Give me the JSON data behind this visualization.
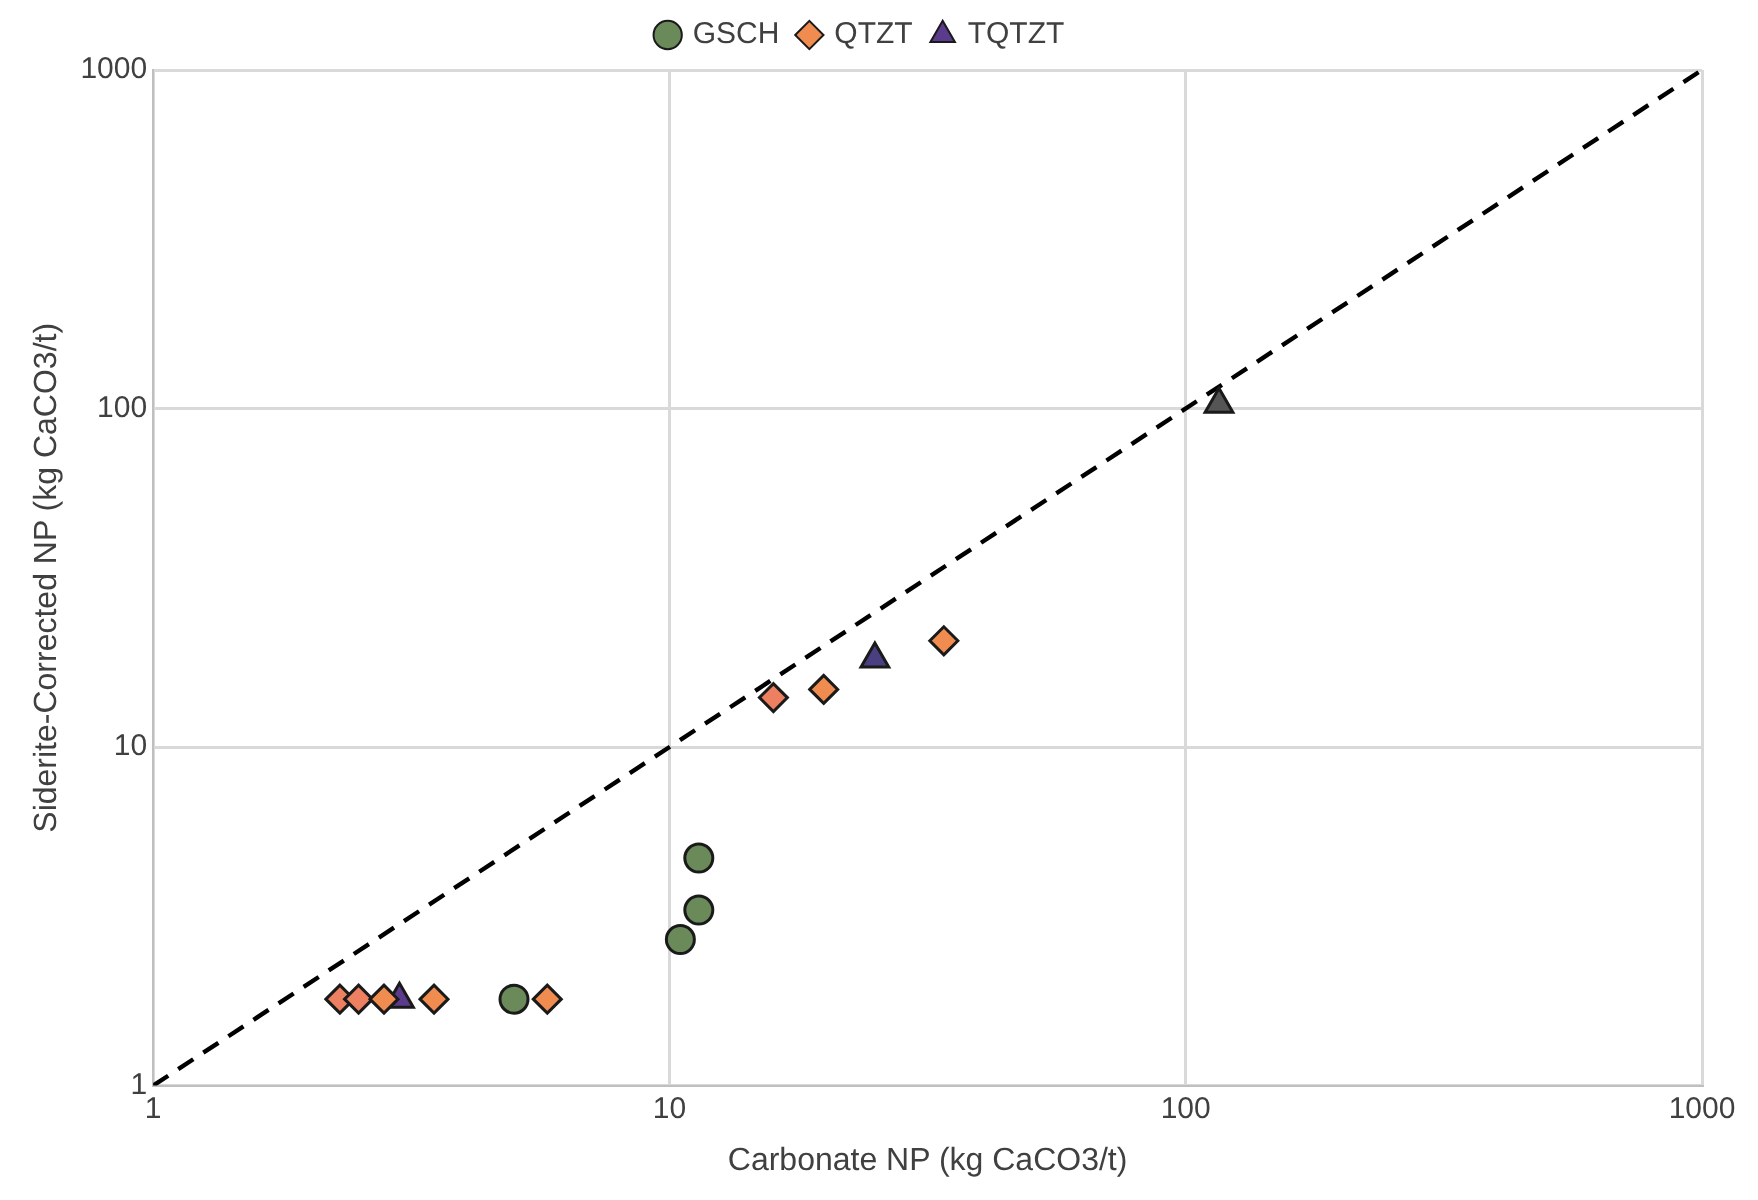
{
  "chart_data": {
    "type": "scatter",
    "xlabel": "Carbonate NP (kg CaCO3/t)",
    "ylabel": "Siderite-Corrected NP (kg CaCO3/t)",
    "log": "xy",
    "xlim": [
      1,
      1000
    ],
    "ylim": [
      1,
      1000
    ],
    "xticks": [
      1,
      10,
      100,
      1000
    ],
    "yticks": [
      1,
      10,
      100,
      1000
    ],
    "grid": true,
    "legend": "top",
    "series": [
      {
        "name": "GSCH",
        "marker": "circle",
        "color": "#6b8a5a",
        "x": [
          5.0,
          11.4,
          11.4,
          10.5
        ],
        "values": [
          1.8,
          4.7,
          3.3,
          2.7
        ]
      },
      {
        "name": "QTZT",
        "marker": "diamond",
        "color": "#f08c50",
        "colors": [
          "#ec8060",
          "#ec8060",
          "#f08c50",
          "#f08c50",
          "#f08c50",
          "#ec8060",
          "#f08c50",
          "#f08c50"
        ],
        "x": [
          2.3,
          2.5,
          2.8,
          3.5,
          5.8,
          15.9,
          19.9,
          34
        ],
        "values": [
          1.8,
          1.8,
          1.8,
          1.8,
          1.8,
          14,
          14.8,
          20.6
        ]
      },
      {
        "name": "TQTZT",
        "marker": "triangle",
        "color": "#5b3c8c",
        "colors": [
          "#5b3c8c",
          "#4a3f80",
          "#555555"
        ],
        "x": [
          3.0,
          25,
          116
        ],
        "values": [
          1.8,
          18.2,
          103
        ]
      },
      {
        "type": "line",
        "marker": "none",
        "line_style": "dashed",
        "color": "#000000",
        "x": [
          1,
          1000
        ],
        "values": [
          1,
          1000
        ]
      }
    ]
  }
}
